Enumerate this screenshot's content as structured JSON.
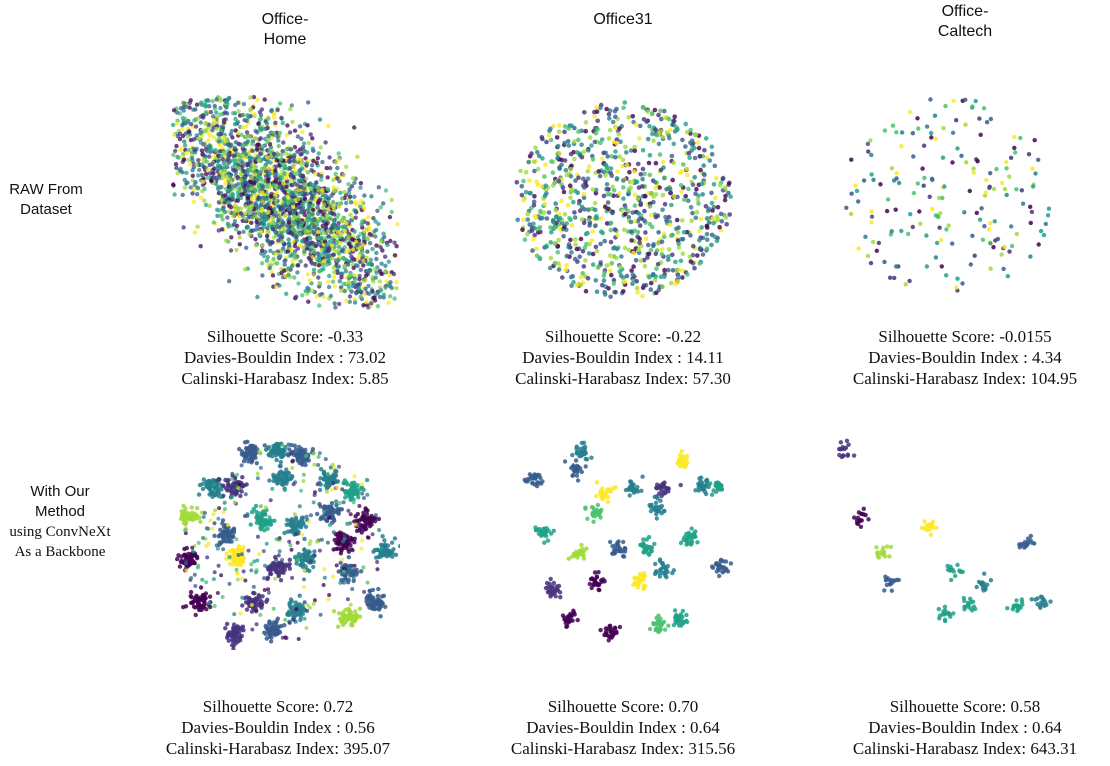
{
  "columns": [
    [
      "Office-",
      "Home"
    ],
    [
      "Office31"
    ],
    [
      "Office-",
      "Caltech"
    ]
  ],
  "rows": [
    [
      "RAW From",
      "Dataset"
    ],
    [
      "With Our",
      "Method",
      "using ConvNeXt",
      "As a Backbone"
    ]
  ],
  "palette": [
    "#440154",
    "#46327e",
    "#365c8d",
    "#277f8e",
    "#1fa187",
    "#4ac16d",
    "#a0da39",
    "#fde725"
  ],
  "chart_data": [
    {
      "type": "scatter",
      "row": "RAW From Dataset",
      "column": "Office-Home",
      "cluster_structure": "diffuse elongated blob, classes fully mixed",
      "metrics": {
        "silhouette": -0.33,
        "davies_bouldin": 73.02,
        "calinski_harabasz": 5.85
      },
      "metric_lines": [
        "Silhouette Score: -0.33",
        "Davies-Bouldin Index : 73.02",
        "Calinski-Harabasz Index: 5.85"
      ]
    },
    {
      "type": "scatter",
      "row": "RAW From Dataset",
      "column": "Office31",
      "cluster_structure": "diffuse round cloud, classes mixed",
      "metrics": {
        "silhouette": -0.22,
        "davies_bouldin": 14.11,
        "calinski_harabasz": 57.3
      },
      "metric_lines": [
        "Silhouette Score: -0.22",
        "Davies-Bouldin Index : 14.11",
        "Calinski-Harabasz Index: 57.30"
      ]
    },
    {
      "type": "scatter",
      "row": "RAW From Dataset",
      "column": "Office-Caltech",
      "cluster_structure": "sparse scattered points, classes mixed",
      "metrics": {
        "silhouette": -0.0155,
        "davies_bouldin": 4.34,
        "calinski_harabasz": 104.95
      },
      "metric_lines": [
        "Silhouette Score: -0.0155",
        "Davies-Bouldin Index : 4.34",
        "Calinski-Harabasz Index: 104.95"
      ]
    },
    {
      "type": "scatter",
      "row": "With Our Method using ConvNeXt As a Backbone",
      "column": "Office-Home",
      "cluster_structure": "many tight class clusters",
      "metrics": {
        "silhouette": 0.72,
        "davies_bouldin": 0.56,
        "calinski_harabasz": 395.07
      },
      "metric_lines": [
        "Silhouette Score: 0.72",
        "Davies-Bouldin Index : 0.56",
        "Calinski-Harabasz Index: 395.07"
      ]
    },
    {
      "type": "scatter",
      "row": "With Our Method using ConvNeXt As a Backbone",
      "column": "Office31",
      "cluster_structure": "well separated tight class clusters",
      "metrics": {
        "silhouette": 0.7,
        "davies_bouldin": 0.64,
        "calinski_harabasz": 315.56
      },
      "metric_lines": [
        "Silhouette Score: 0.70",
        "Davies-Bouldin Index : 0.64",
        "Calinski-Harabasz Index: 315.56"
      ]
    },
    {
      "type": "scatter",
      "row": "With Our Method using ConvNeXt As a Backbone",
      "column": "Office-Caltech",
      "cluster_structure": "few compact class clusters",
      "metrics": {
        "silhouette": 0.58,
        "davies_bouldin": 0.64,
        "calinski_harabasz": 643.31
      },
      "metric_lines": [
        "Silhouette Score: 0.58",
        "Davies-Bouldin Index : 0.64",
        "Calinski-Harabasz Index: 643.31"
      ]
    }
  ]
}
